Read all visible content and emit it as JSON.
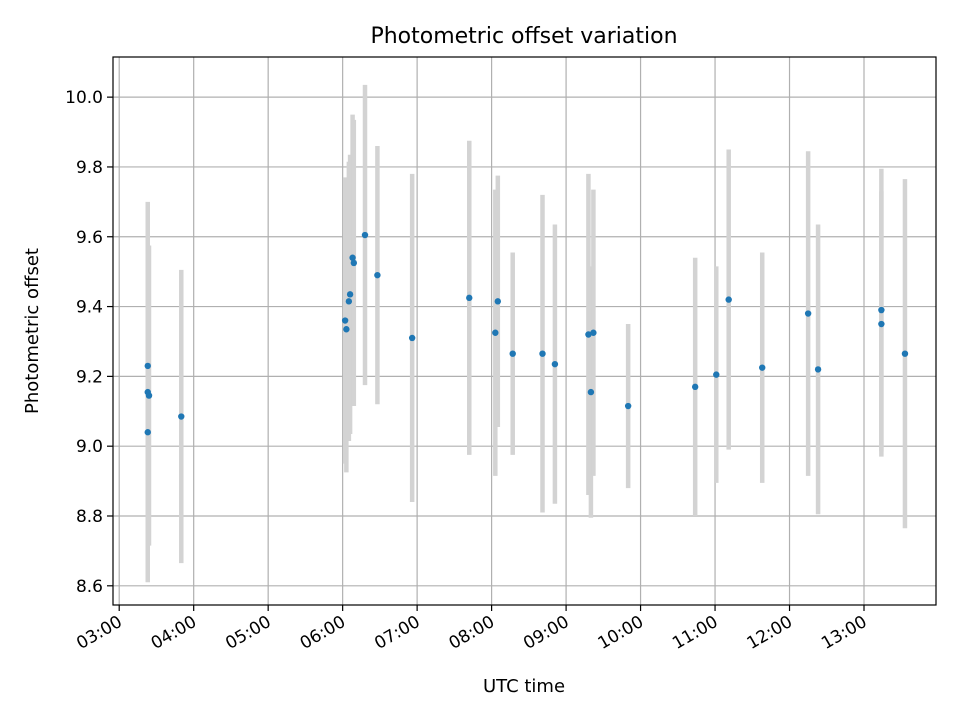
{
  "chart_data": {
    "type": "scatter",
    "title": "Photometric offset variation",
    "xlabel": "UTC time",
    "ylabel": "Photometric offset",
    "x_unit": "UTC time (HH:MM)",
    "xlim": [
      "02:55",
      "13:58"
    ],
    "ylim": [
      8.545,
      10.115
    ],
    "grid": true,
    "x_ticks": [
      "03:00",
      "04:00",
      "05:00",
      "06:00",
      "07:00",
      "08:00",
      "09:00",
      "10:00",
      "11:00",
      "12:00",
      "13:00"
    ],
    "y_ticks": [
      "8.6",
      "8.8",
      "9.0",
      "9.2",
      "9.4",
      "9.6",
      "9.8",
      "10.0"
    ],
    "y_tick_values": [
      8.6,
      8.8,
      9.0,
      9.2,
      9.4,
      9.6,
      9.8,
      10.0
    ],
    "marker_color": "#1f77b4",
    "errorbar_color": "#d3d3d3",
    "points": [
      {
        "time": "03:23",
        "y": 9.23,
        "err": 0.47
      },
      {
        "time": "03:23",
        "y": 9.155,
        "err": 0.42
      },
      {
        "time": "03:24",
        "y": 9.145,
        "err": 0.43
      },
      {
        "time": "03:23",
        "y": 9.04,
        "err": 0.43
      },
      {
        "time": "03:50",
        "y": 9.085,
        "err": 0.42
      },
      {
        "time": "06:02",
        "y": 9.36,
        "err": 0.41
      },
      {
        "time": "06:03",
        "y": 9.335,
        "err": 0.41
      },
      {
        "time": "06:05",
        "y": 9.415,
        "err": 0.4
      },
      {
        "time": "06:06",
        "y": 9.435,
        "err": 0.4
      },
      {
        "time": "06:08",
        "y": 9.54,
        "err": 0.41
      },
      {
        "time": "06:09",
        "y": 9.525,
        "err": 0.41
      },
      {
        "time": "06:18",
        "y": 9.605,
        "err": 0.43
      },
      {
        "time": "06:28",
        "y": 9.49,
        "err": 0.37
      },
      {
        "time": "06:56",
        "y": 9.31,
        "err": 0.47
      },
      {
        "time": "07:42",
        "y": 9.425,
        "err": 0.45
      },
      {
        "time": "08:03",
        "y": 9.325,
        "err": 0.41
      },
      {
        "time": "08:05",
        "y": 9.415,
        "err": 0.36
      },
      {
        "time": "08:17",
        "y": 9.265,
        "err": 0.29
      },
      {
        "time": "08:41",
        "y": 9.265,
        "err": 0.455
      },
      {
        "time": "08:51",
        "y": 9.235,
        "err": 0.4
      },
      {
        "time": "09:18",
        "y": 9.32,
        "err": 0.46
      },
      {
        "time": "09:20",
        "y": 9.155,
        "err": 0.36
      },
      {
        "time": "09:22",
        "y": 9.325,
        "err": 0.41
      },
      {
        "time": "09:50",
        "y": 9.115,
        "err": 0.235
      },
      {
        "time": "10:44",
        "y": 9.17,
        "err": 0.37
      },
      {
        "time": "11:01",
        "y": 9.205,
        "err": 0.31
      },
      {
        "time": "11:11",
        "y": 9.42,
        "err": 0.43
      },
      {
        "time": "11:38",
        "y": 9.225,
        "err": 0.33
      },
      {
        "time": "12:15",
        "y": 9.38,
        "err": 0.465
      },
      {
        "time": "12:23",
        "y": 9.22,
        "err": 0.415
      },
      {
        "time": "13:14",
        "y": 9.39,
        "err": 0.405
      },
      {
        "time": "13:14",
        "y": 9.35,
        "err": 0.38
      },
      {
        "time": "13:33",
        "y": 9.265,
        "err": 0.5
      }
    ]
  }
}
